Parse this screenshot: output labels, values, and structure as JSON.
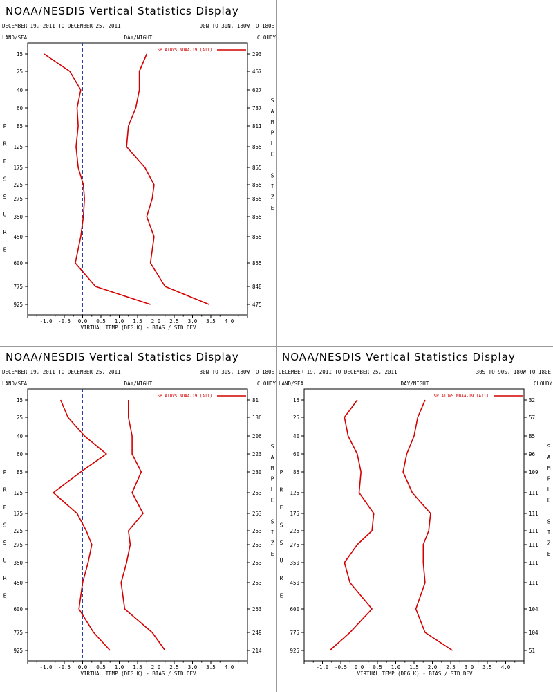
{
  "chart_data": [
    {
      "type": "line",
      "title": "NOAA/NESDIS Vertical Statistics Display",
      "date_range": "DECEMBER 19, 2011 TO DECEMBER 25, 2011",
      "region": "90N TO 30N, 180W TO 180E",
      "label_land_sea": "LAND/SEA",
      "label_day_night": "DAY/NIGHT",
      "label_cloudy": "CLOUDY",
      "ylabel": "PRESSURE",
      "y2label": "SAMPLE SIZE",
      "xlabel": "VIRTUAL TEMP (DEG K) - BIAS / STD DEV",
      "legend": "SP ATOVS NOAA-19 (A11)",
      "x_ticks": [
        "-1.0",
        "-0.5",
        "0.0",
        "0.5",
        "1.0",
        "1.5",
        "2.0",
        "2.5",
        "3.0",
        "3.5",
        "4.0"
      ],
      "xlim": [
        -1.5,
        4.5
      ],
      "pressure_levels": [
        "15",
        "25",
        "40",
        "60",
        "85",
        "125",
        "175",
        "225",
        "275",
        "350",
        "450",
        "600",
        "775",
        "925"
      ],
      "sample_sizes": [
        "293",
        "467",
        "627",
        "737",
        "811",
        "855",
        "855",
        "855",
        "855",
        "855",
        "855",
        "855",
        "848",
        "475"
      ],
      "series": [
        {
          "values": [
            -1.05,
            -0.35,
            -0.05,
            -0.15,
            -0.12,
            -0.18,
            -0.12,
            0.02,
            0.05,
            0.02,
            -0.05,
            -0.2,
            0.35,
            1.85
          ]
        },
        {
          "values": [
            1.75,
            1.55,
            1.55,
            1.45,
            1.25,
            1.2,
            1.7,
            1.95,
            1.9,
            1.75,
            1.95,
            1.85,
            2.25,
            3.45
          ]
        }
      ]
    },
    {
      "type": "line",
      "title": "NOAA/NESDIS Vertical Statistics Display",
      "date_range": "DECEMBER 19, 2011 TO DECEMBER 25, 2011",
      "region": "30N TO 30S, 180W TO 180E",
      "label_land_sea": "LAND/SEA",
      "label_day_night": "DAY/NIGHT",
      "label_cloudy": "CLOUDY",
      "ylabel": "PRESSURE",
      "y2label": "SAMPLE SIZE",
      "xlabel": "VIRTUAL TEMP (DEG K) - BIAS / STD DEV",
      "legend": "SP ATOVS NOAA-19 (A11)",
      "x_ticks": [
        "-1.0",
        "-0.5",
        "0.0",
        "0.5",
        "1.0",
        "1.5",
        "2.0",
        "2.5",
        "3.0",
        "3.5",
        "4.0"
      ],
      "xlim": [
        -1.5,
        4.5
      ],
      "pressure_levels": [
        "15",
        "25",
        "40",
        "60",
        "85",
        "125",
        "175",
        "225",
        "275",
        "350",
        "450",
        "600",
        "775",
        "925"
      ],
      "sample_sizes": [
        "81",
        "136",
        "206",
        "223",
        "230",
        "253",
        "253",
        "253",
        "253",
        "253",
        "253",
        "253",
        "249",
        "214"
      ],
      "series": [
        {
          "values": [
            -0.6,
            -0.4,
            0.05,
            0.65,
            -0.05,
            -0.8,
            -0.15,
            0.1,
            0.25,
            0.15,
            0.0,
            -0.1,
            0.3,
            0.75
          ]
        },
        {
          "values": [
            1.25,
            1.25,
            1.35,
            1.35,
            1.6,
            1.35,
            1.65,
            1.25,
            1.3,
            1.2,
            1.05,
            1.15,
            1.9,
            2.25
          ]
        }
      ]
    },
    {
      "type": "line",
      "title": "NOAA/NESDIS Vertical Statistics Display",
      "date_range": "DECEMBER 19, 2011 TO DECEMBER 25, 2011",
      "region": "30S TO 90S, 180W TO 180E",
      "label_land_sea": "LAND/SEA",
      "label_day_night": "DAY/NIGHT",
      "label_cloudy": "CLOUDY",
      "ylabel": "PRESSURE",
      "y2label": "SAMPLE SIZE",
      "xlabel": "VIRTUAL TEMP (DEG K) - BIAS / STD DEV",
      "legend": "SP ATOVS NOAA-19 (A11)",
      "x_ticks": [
        "-1.0",
        "-0.5",
        "0.0",
        "0.5",
        "1.0",
        "1.5",
        "2.0",
        "2.5",
        "3.0",
        "3.5",
        "4.0"
      ],
      "xlim": [
        -1.5,
        4.5
      ],
      "pressure_levels": [
        "15",
        "25",
        "40",
        "60",
        "85",
        "125",
        "175",
        "225",
        "275",
        "350",
        "450",
        "600",
        "775",
        "925"
      ],
      "sample_sizes": [
        "32",
        "57",
        "85",
        "96",
        "109",
        "111",
        "111",
        "111",
        "111",
        "111",
        "111",
        "104",
        "104",
        "51"
      ],
      "series": [
        {
          "values": [
            -0.05,
            -0.4,
            -0.3,
            -0.05,
            0.05,
            0.0,
            0.4,
            0.35,
            -0.05,
            -0.4,
            -0.25,
            0.35,
            -0.25,
            -0.8
          ]
        },
        {
          "values": [
            1.8,
            1.6,
            1.5,
            1.3,
            1.2,
            1.45,
            1.95,
            1.9,
            1.75,
            1.75,
            1.8,
            1.55,
            1.8,
            2.55
          ]
        }
      ]
    }
  ]
}
